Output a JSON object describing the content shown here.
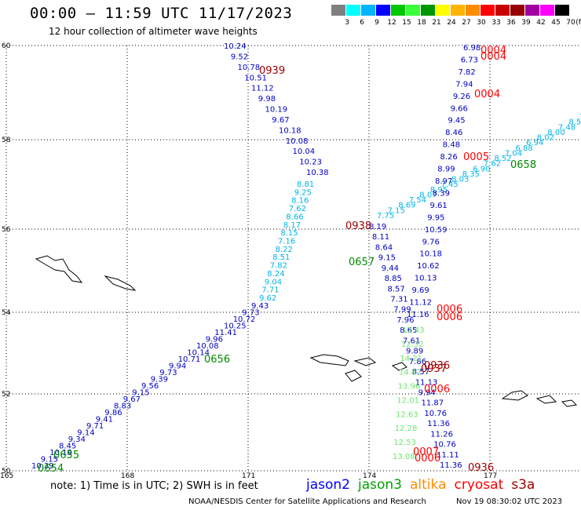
{
  "header": {
    "title": "00:00 – 11:59 UTC 11/17/2023",
    "subtitle": "12 hour collection of altimeter wave heights"
  },
  "colorbar": {
    "unit": "(ft)",
    "labels": [
      "3",
      "6",
      "9",
      "12",
      "15",
      "18",
      "21",
      "24",
      "27",
      "30",
      "33",
      "36",
      "39",
      "42",
      "45",
      "70"
    ],
    "colors": [
      "#7f7f7f",
      "#00ffff",
      "#00b4ff",
      "#0000ff",
      "#00c800",
      "#3cff3c",
      "#009600",
      "#ffff00",
      "#ffb400",
      "#ff8c00",
      "#ff0000",
      "#c80000",
      "#960000",
      "#a000a0",
      "#ff00ff",
      "#000000"
    ]
  },
  "axes": {
    "lat_labels": [
      "60",
      "58",
      "56",
      "54",
      "52",
      "50"
    ],
    "lon_labels": [
      "165",
      "168",
      "171",
      "174",
      "177"
    ]
  },
  "passes": [
    {
      "name": "track-a-dark-blue",
      "color": "#0000c0",
      "labels": [
        "10.24",
        "9.52",
        "10.78",
        "10.51",
        "11.12",
        "9.98",
        "10.19",
        "9.67",
        "10.18",
        "10.08",
        "10.04",
        "10.23",
        "10.38"
      ]
    },
    {
      "name": "track-a-cyan",
      "color": "#00b4e6",
      "labels": [
        "8.81",
        "9.25",
        "8.16",
        "7.62",
        "8.66",
        "8.17",
        "8.15",
        "7.16",
        "8.22",
        "8.51",
        "7.82",
        "8.24",
        "9.04",
        "7.71",
        "9.62"
      ]
    },
    {
      "name": "track-b-dark-blue",
      "color": "#0000c0",
      "labels": [
        "9.43",
        "9.73",
        "10.72",
        "10.25",
        "11.41",
        "9.96",
        "10.08",
        "10.14",
        "10.71",
        "9.94",
        "9.73",
        "9.39",
        "9.56",
        "9.15",
        "9.67",
        "8.83",
        "9.86",
        "9.41",
        "9.71",
        "9.14",
        "9.34",
        "8.45",
        "10.19",
        "9.15",
        "10.39"
      ]
    },
    {
      "name": "track-c-blue",
      "color": "#0000c0",
      "labels": [
        "8.19",
        "8.11",
        "8.64",
        "9.15",
        "9.44",
        "8.85",
        "8.57",
        "7.31",
        "7.99",
        "7.96",
        "8.65",
        "7.61",
        "9.89",
        "7.86",
        "8.57",
        "11.13",
        "9.94",
        "11.87",
        "10.76",
        "11.36",
        "11.26",
        "10.76",
        "11.11",
        "11.36"
      ]
    },
    {
      "name": "track-d-cyan",
      "color": "#00b4e6",
      "labels": [
        "7.8",
        "8.59",
        "7.48",
        "8.00",
        "8.02",
        "6.94",
        "6.88",
        "7.04",
        "8.52",
        "7.62",
        "6.90",
        "8.35",
        "8.03",
        "7.45",
        "8.95",
        "8.07",
        "7.54",
        "8.69",
        "7.15",
        "7.75"
      ]
    },
    {
      "name": "track-e-mixed",
      "color": "#0000c0",
      "labels": [
        "6.98",
        "6.73",
        "7.82",
        "7.94",
        "9.26",
        "9.66",
        "9.45",
        "8.46",
        "8.48",
        "8.26",
        "8.99",
        "8.97",
        "8.39",
        "9.61",
        "9.95",
        "10.59",
        "9.76",
        "10.18",
        "10.62",
        "10.13",
        "9.69",
        "11.12",
        "11.16"
      ]
    },
    {
      "name": "track-f-green",
      "color": "#6ee66e",
      "labels": [
        "12.43",
        "12.32",
        "14.21",
        "14.32",
        "13.96",
        "12.01",
        "12.63",
        "12.28",
        "12.53",
        "13.08"
      ]
    }
  ],
  "times": [
    {
      "t": "0939",
      "c": "#a00000"
    },
    {
      "t": "0004",
      "c": "#ff0000"
    },
    {
      "t": "0004",
      "c": "#ff0000"
    },
    {
      "t": "0004",
      "c": "#ff0000"
    },
    {
      "t": "0938",
      "c": "#a00000"
    },
    {
      "t": "0657",
      "c": "#008c00"
    },
    {
      "t": "0658",
      "c": "#008c00"
    },
    {
      "t": "0005",
      "c": "#ff0000"
    },
    {
      "t": "0006",
      "c": "#ff0000"
    },
    {
      "t": "0006",
      "c": "#ff0000"
    },
    {
      "t": "0656",
      "c": "#008c00"
    },
    {
      "t": "0936",
      "c": "#a00000"
    },
    {
      "t": "0937",
      "c": "#a00000"
    },
    {
      "t": "0006",
      "c": "#ff0000"
    },
    {
      "t": "0655",
      "c": "#008c00"
    },
    {
      "t": "0654",
      "c": "#008c00"
    },
    {
      "t": "0007",
      "c": "#ff0000"
    },
    {
      "t": "0936",
      "c": "#a00000"
    },
    {
      "t": "0006",
      "c": "#ff0000"
    }
  ],
  "note": "note: 1) Time is in UTC; 2) SWH is in feet",
  "legend": [
    {
      "label": "jason2",
      "color": "#0000ff"
    },
    {
      "label": "jason3",
      "color": "#00a000"
    },
    {
      "label": "altika",
      "color": "#ff8c00"
    },
    {
      "label": "cryosat",
      "color": "#ff0000"
    },
    {
      "label": "s3a",
      "color": "#a00000"
    }
  ],
  "footer": {
    "left": "NOAA/NESDIS Center for Satellite Applications and Research",
    "right": "Nov 19 08:30:02 UTC 2023"
  }
}
